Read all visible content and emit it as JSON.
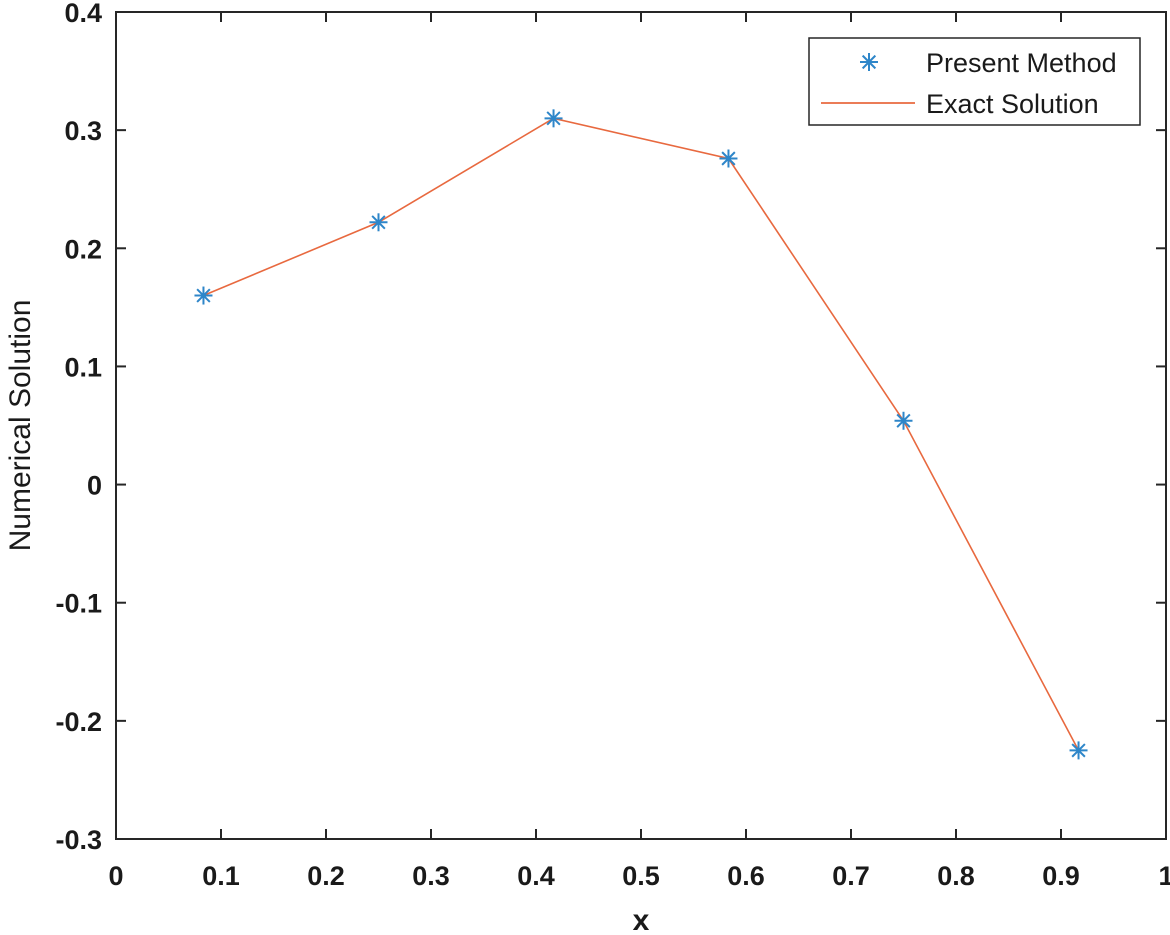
{
  "chart_data": {
    "type": "line",
    "title": "",
    "xlabel": "x",
    "ylabel": "Numerical Solution",
    "xlim": [
      0,
      1
    ],
    "ylim": [
      -0.3,
      0.4
    ],
    "xticks": [
      0,
      0.1,
      0.2,
      0.3,
      0.4,
      0.5,
      0.6,
      0.7,
      0.8,
      0.9,
      1
    ],
    "xtick_labels": [
      "0",
      "0.1",
      "0.2",
      "0.3",
      "0.4",
      "0.5",
      "0.6",
      "0.7",
      "0.8",
      "0.9",
      "1"
    ],
    "yticks": [
      -0.3,
      -0.2,
      -0.1,
      0,
      0.1,
      0.2,
      0.3,
      0.4
    ],
    "ytick_labels": [
      "-0.3",
      "-0.2",
      "-0.1",
      "0",
      "0.1",
      "0.2",
      "0.3",
      "0.4"
    ],
    "grid": false,
    "legend_position": "top-right",
    "x": [
      0.0833,
      0.25,
      0.4167,
      0.5833,
      0.75,
      0.9167
    ],
    "series": [
      {
        "name": "Present Method",
        "style": "markers-asterisk",
        "color": "#2e86c9",
        "values": [
          0.16,
          0.222,
          0.31,
          0.276,
          0.054,
          -0.225
        ]
      },
      {
        "name": "Exact Solution",
        "style": "line",
        "color": "#e8693f",
        "values": [
          0.16,
          0.222,
          0.31,
          0.276,
          0.054,
          -0.225
        ]
      }
    ]
  }
}
